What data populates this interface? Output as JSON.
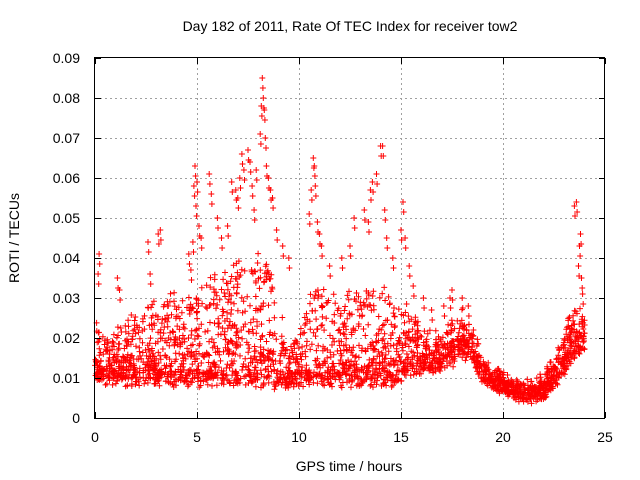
{
  "chart_data": {
    "type": "scatter",
    "title": "Day 182 of 2011, Rate Of TEC Index for receiver tow2",
    "xlabel": "GPS time / hours",
    "ylabel": "ROTI / TECUs",
    "xlim": [
      0,
      25
    ],
    "ylim": [
      0,
      0.09
    ],
    "x_ticks": [
      "0",
      "5",
      "10",
      "15",
      "20",
      "25"
    ],
    "y_ticks": [
      "0",
      "0.01",
      "0.02",
      "0.03",
      "0.04",
      "0.05",
      "0.06",
      "0.07",
      "0.08",
      "0.09"
    ],
    "grid": true,
    "marker": "+",
    "color": "#ff0000",
    "envelope": {
      "hours": [
        0,
        0.5,
        1,
        1.5,
        2,
        2.5,
        3,
        3.5,
        4,
        4.5,
        5,
        5.5,
        6,
        6.5,
        7,
        7.5,
        8,
        8.5,
        9,
        9.5,
        10,
        10.5,
        11,
        11.5,
        12,
        12.5,
        13,
        13.5,
        14,
        14.5,
        15,
        15.5,
        16,
        16.5,
        17,
        17.5,
        18,
        18.5,
        19,
        19.5,
        20,
        20.5,
        21,
        21.5,
        22,
        22.5,
        23,
        23.5,
        24
      ],
      "base": [
        0.011,
        0.009,
        0.009,
        0.009,
        0.009,
        0.009,
        0.009,
        0.009,
        0.009,
        0.009,
        0.009,
        0.009,
        0.009,
        0.009,
        0.009,
        0.009,
        0.009,
        0.009,
        0.008,
        0.008,
        0.009,
        0.009,
        0.009,
        0.009,
        0.009,
        0.009,
        0.009,
        0.009,
        0.009,
        0.009,
        0.01,
        0.011,
        0.012,
        0.012,
        0.013,
        0.014,
        0.016,
        0.015,
        0.01,
        0.008,
        0.007,
        0.006,
        0.005,
        0.005,
        0.006,
        0.008,
        0.012,
        0.016,
        0.018
      ],
      "spread": [
        0.012,
        0.01,
        0.012,
        0.013,
        0.016,
        0.018,
        0.02,
        0.02,
        0.022,
        0.022,
        0.024,
        0.024,
        0.026,
        0.027,
        0.03,
        0.03,
        0.032,
        0.03,
        0.018,
        0.01,
        0.012,
        0.022,
        0.024,
        0.022,
        0.02,
        0.022,
        0.024,
        0.024,
        0.025,
        0.02,
        0.018,
        0.014,
        0.01,
        0.008,
        0.008,
        0.009,
        0.01,
        0.006,
        0.004,
        0.003,
        0.003,
        0.002,
        0.002,
        0.003,
        0.003,
        0.006,
        0.01,
        0.012,
        0.01
      ]
    },
    "spikes": [
      {
        "x": 0.2,
        "y": 0.041
      },
      {
        "x": 0.15,
        "y": 0.036
      },
      {
        "x": 1.1,
        "y": 0.035
      },
      {
        "x": 1.2,
        "y": 0.032
      },
      {
        "x": 2.6,
        "y": 0.044
      },
      {
        "x": 2.7,
        "y": 0.036
      },
      {
        "x": 3.1,
        "y": 0.046
      },
      {
        "x": 3.2,
        "y": 0.047
      },
      {
        "x": 4.6,
        "y": 0.041
      },
      {
        "x": 4.7,
        "y": 0.037
      },
      {
        "x": 4.8,
        "y": 0.044
      },
      {
        "x": 4.85,
        "y": 0.058
      },
      {
        "x": 4.9,
        "y": 0.063
      },
      {
        "x": 4.95,
        "y": 0.053
      },
      {
        "x": 5.0,
        "y": 0.059
      },
      {
        "x": 5.1,
        "y": 0.048
      },
      {
        "x": 5.2,
        "y": 0.045
      },
      {
        "x": 5.6,
        "y": 0.061
      },
      {
        "x": 5.7,
        "y": 0.056
      },
      {
        "x": 6.0,
        "y": 0.05
      },
      {
        "x": 6.2,
        "y": 0.045
      },
      {
        "x": 6.5,
        "y": 0.048
      },
      {
        "x": 6.7,
        "y": 0.059
      },
      {
        "x": 6.9,
        "y": 0.057
      },
      {
        "x": 7.0,
        "y": 0.055
      },
      {
        "x": 7.1,
        "y": 0.06
      },
      {
        "x": 7.2,
        "y": 0.066
      },
      {
        "x": 7.3,
        "y": 0.062
      },
      {
        "x": 7.5,
        "y": 0.067
      },
      {
        "x": 7.6,
        "y": 0.064
      },
      {
        "x": 7.7,
        "y": 0.058
      },
      {
        "x": 7.8,
        "y": 0.052
      },
      {
        "x": 7.9,
        "y": 0.062
      },
      {
        "x": 8.1,
        "y": 0.071
      },
      {
        "x": 8.15,
        "y": 0.078
      },
      {
        "x": 8.2,
        "y": 0.085
      },
      {
        "x": 8.25,
        "y": 0.08
      },
      {
        "x": 8.3,
        "y": 0.077
      },
      {
        "x": 8.35,
        "y": 0.07
      },
      {
        "x": 8.4,
        "y": 0.063
      },
      {
        "x": 8.5,
        "y": 0.06
      },
      {
        "x": 8.6,
        "y": 0.057
      },
      {
        "x": 8.7,
        "y": 0.055
      },
      {
        "x": 8.9,
        "y": 0.047
      },
      {
        "x": 9.2,
        "y": 0.043
      },
      {
        "x": 9.5,
        "y": 0.04
      },
      {
        "x": 10.5,
        "y": 0.051
      },
      {
        "x": 10.6,
        "y": 0.057
      },
      {
        "x": 10.7,
        "y": 0.065
      },
      {
        "x": 10.75,
        "y": 0.063
      },
      {
        "x": 10.8,
        "y": 0.058
      },
      {
        "x": 10.9,
        "y": 0.049
      },
      {
        "x": 11.0,
        "y": 0.046
      },
      {
        "x": 11.1,
        "y": 0.043
      },
      {
        "x": 11.5,
        "y": 0.038
      },
      {
        "x": 12.1,
        "y": 0.04
      },
      {
        "x": 12.5,
        "y": 0.043
      },
      {
        "x": 12.7,
        "y": 0.05
      },
      {
        "x": 13.2,
        "y": 0.052
      },
      {
        "x": 13.4,
        "y": 0.049
      },
      {
        "x": 13.5,
        "y": 0.057
      },
      {
        "x": 13.6,
        "y": 0.059
      },
      {
        "x": 13.8,
        "y": 0.061
      },
      {
        "x": 14.0,
        "y": 0.068
      },
      {
        "x": 14.1,
        "y": 0.068
      },
      {
        "x": 14.2,
        "y": 0.052
      },
      {
        "x": 14.3,
        "y": 0.045
      },
      {
        "x": 14.6,
        "y": 0.04
      },
      {
        "x": 15.0,
        "y": 0.047
      },
      {
        "x": 15.1,
        "y": 0.054
      },
      {
        "x": 15.2,
        "y": 0.045
      },
      {
        "x": 15.4,
        "y": 0.038
      },
      {
        "x": 15.6,
        "y": 0.033
      },
      {
        "x": 16.1,
        "y": 0.03
      },
      {
        "x": 16.5,
        "y": 0.027
      },
      {
        "x": 17.1,
        "y": 0.028
      },
      {
        "x": 17.4,
        "y": 0.03
      },
      {
        "x": 17.5,
        "y": 0.032
      },
      {
        "x": 18.0,
        "y": 0.03
      },
      {
        "x": 18.3,
        "y": 0.028
      },
      {
        "x": 23.5,
        "y": 0.053
      },
      {
        "x": 23.6,
        "y": 0.054
      },
      {
        "x": 23.7,
        "y": 0.038
      },
      {
        "x": 23.75,
        "y": 0.043
      },
      {
        "x": 23.8,
        "y": 0.046
      },
      {
        "x": 23.85,
        "y": 0.035
      },
      {
        "x": 23.9,
        "y": 0.031
      }
    ]
  }
}
